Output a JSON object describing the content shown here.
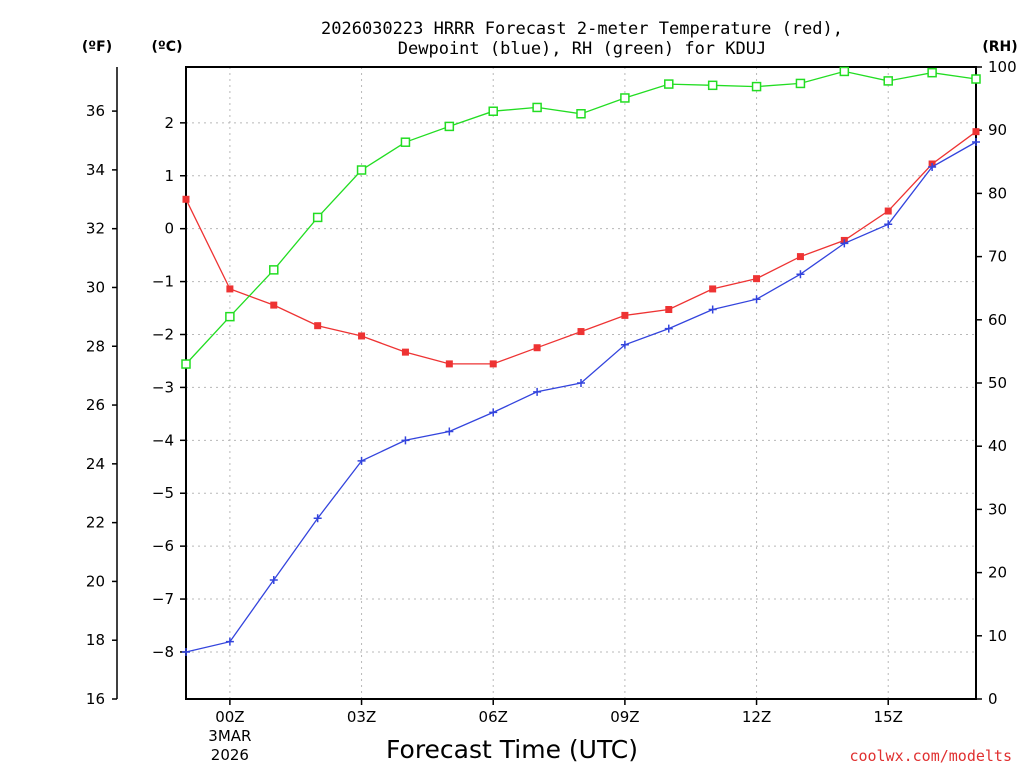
{
  "chart_data": {
    "type": "line",
    "title_line1": "2026030223 HRRR Forecast 2-meter Temperature (red),",
    "title_line2": "Dewpoint (blue), RH (green) for KDUJ",
    "xlabel": "Forecast Time (UTC)",
    "credit": "coolwx.com/modelts",
    "units": {
      "f": "(ºF)",
      "c": "(ºC)",
      "rh": "(RH)"
    },
    "x_range_hours": [
      23,
      41
    ],
    "x_ticks": [
      {
        "hour": 24,
        "label": "00Z",
        "sub1": "3MAR",
        "sub2": "2026"
      },
      {
        "hour": 27,
        "label": "03Z"
      },
      {
        "hour": 30,
        "label": "06Z"
      },
      {
        "hour": 33,
        "label": "09Z"
      },
      {
        "hour": 36,
        "label": "12Z"
      },
      {
        "hour": 39,
        "label": "15Z"
      }
    ],
    "y_left_f": {
      "min": 16,
      "max": 37.5,
      "ticks": [
        16,
        18,
        20,
        22,
        24,
        26,
        28,
        30,
        32,
        34,
        36
      ]
    },
    "y_left_c": {
      "ticks": [
        -8,
        -7,
        -6,
        -5,
        -4,
        -3,
        -2,
        -1,
        0,
        1,
        2
      ]
    },
    "y_right_rh": {
      "min": 0,
      "max": 100,
      "ticks": [
        0,
        10,
        20,
        30,
        40,
        50,
        60,
        70,
        80,
        90,
        100
      ]
    },
    "series": [
      {
        "name": "Temperature",
        "color": "#ee3333",
        "units": "F",
        "hours": [
          23,
          24,
          25,
          26,
          27,
          28,
          29,
          30,
          31,
          32,
          33,
          34,
          35,
          36,
          37,
          38,
          39,
          40,
          41
        ],
        "values": [
          33.0,
          29.95,
          29.4,
          28.7,
          28.35,
          27.8,
          27.4,
          27.4,
          27.95,
          28.5,
          29.05,
          29.25,
          29.95,
          30.3,
          31.05,
          31.6,
          32.6,
          34.2,
          35.3
        ]
      },
      {
        "name": "Dewpoint",
        "color": "#3344dd",
        "units": "F",
        "hours": [
          23,
          24,
          25,
          26,
          27,
          28,
          29,
          30,
          31,
          32,
          33,
          34,
          35,
          36,
          37,
          38,
          39,
          40,
          41
        ],
        "values": [
          17.6,
          17.95,
          20.05,
          22.15,
          24.1,
          24.8,
          25.1,
          25.75,
          26.45,
          26.75,
          28.05,
          28.6,
          29.25,
          29.6,
          30.45,
          31.5,
          32.15,
          34.1,
          34.95
        ]
      },
      {
        "name": "Relative Humidity",
        "color": "#22dd22",
        "units": "%",
        "hours": [
          23,
          24,
          25,
          26,
          27,
          28,
          29,
          30,
          31,
          32,
          33,
          34,
          35,
          36,
          37,
          38,
          39,
          40,
          41
        ],
        "values": [
          53,
          60.5,
          67.9,
          76.2,
          83.7,
          88.1,
          90.6,
          93,
          93.6,
          92.6,
          95.1,
          97.3,
          97.1,
          96.9,
          97.4,
          99.3,
          97.8,
          99.1,
          98.1
        ]
      }
    ]
  }
}
